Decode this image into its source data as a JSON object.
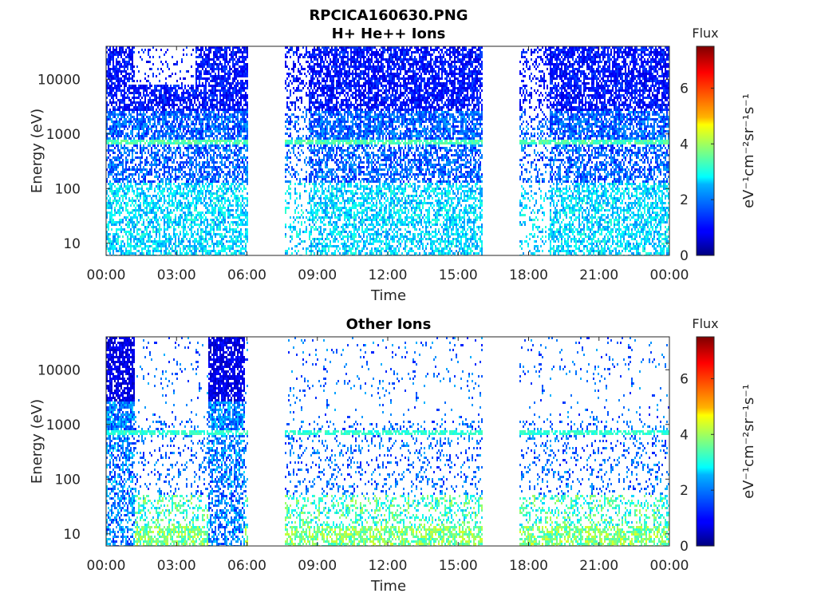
{
  "figure": {
    "title_line1": "RPCICA160630.PNG"
  },
  "chart_data": [
    {
      "type": "heatmap",
      "title": "H+ He++ Ions",
      "xlabel": "Time",
      "ylabel": "Energy (eV)",
      "y_scale": "log",
      "ylim": [
        6,
        40000
      ],
      "xlim_hours": [
        0,
        24
      ],
      "x_tick_labels": [
        "00:00",
        "03:00",
        "06:00",
        "09:00",
        "12:00",
        "15:00",
        "18:00",
        "21:00",
        "00:00"
      ],
      "y_ticks": [
        10,
        100,
        1000,
        10000
      ],
      "y_tick_labels": [
        "10",
        "100",
        "1000",
        "10000"
      ],
      "data_gaps_hours": [
        [
          6.0,
          7.55
        ],
        [
          16.0,
          17.55
        ]
      ],
      "colorbar": {
        "title": "Flux",
        "label": "eV⁻¹cm⁻²sr⁻¹s⁻¹",
        "range": [
          0,
          7.5
        ],
        "ticks": [
          0,
          2,
          4,
          6
        ],
        "tick_labels": [
          "0",
          "2",
          "4",
          "6"
        ],
        "colormap": "jet"
      }
    },
    {
      "type": "heatmap",
      "title": "Other Ions",
      "xlabel": "Time",
      "ylabel": "Energy (eV)",
      "y_scale": "log",
      "ylim": [
        6,
        40000
      ],
      "xlim_hours": [
        0,
        24
      ],
      "x_tick_labels": [
        "00:00",
        "03:00",
        "06:00",
        "09:00",
        "12:00",
        "15:00",
        "18:00",
        "21:00",
        "00:00"
      ],
      "y_ticks": [
        10,
        100,
        1000,
        10000
      ],
      "y_tick_labels": [
        "10",
        "100",
        "1000",
        "10000"
      ],
      "data_gaps_hours": [
        [
          6.0,
          7.55
        ],
        [
          16.0,
          17.55
        ]
      ],
      "colorbar": {
        "title": "Flux",
        "label": "eV⁻¹cm⁻²sr⁻¹s⁻¹",
        "range": [
          0,
          7.5
        ],
        "ticks": [
          0,
          2,
          4,
          6
        ],
        "tick_labels": [
          "0",
          "2",
          "4",
          "6"
        ],
        "colormap": "jet"
      }
    }
  ]
}
